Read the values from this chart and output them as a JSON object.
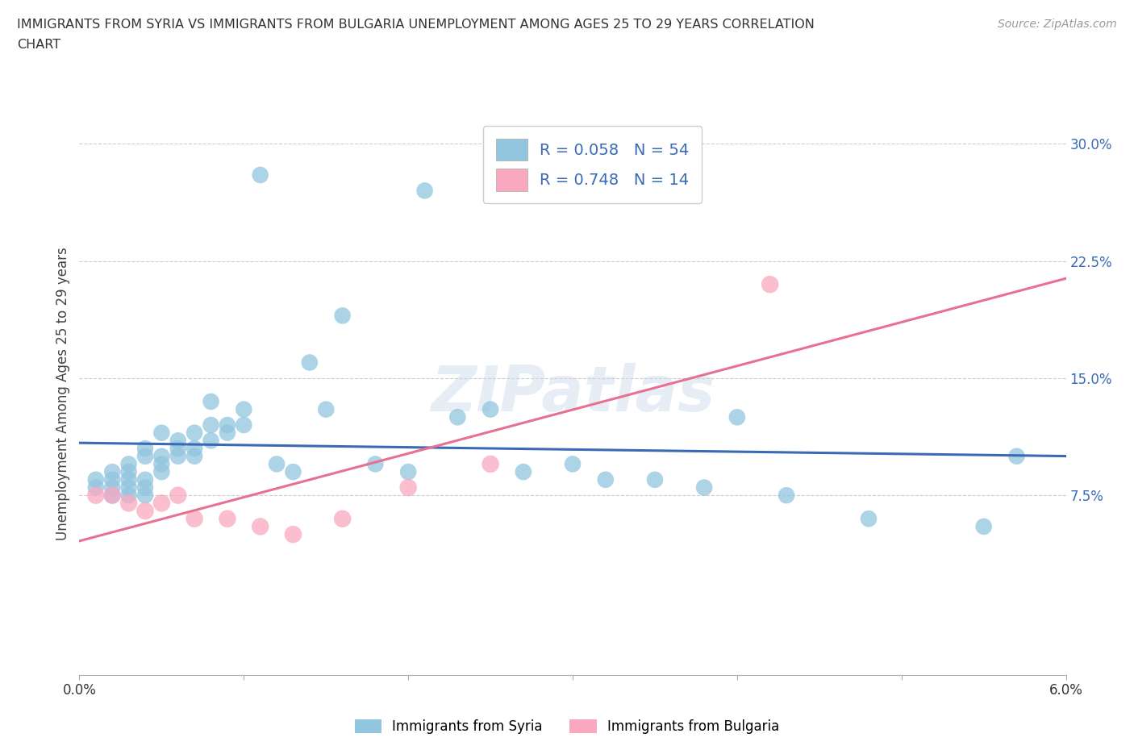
{
  "title_line1": "IMMIGRANTS FROM SYRIA VS IMMIGRANTS FROM BULGARIA UNEMPLOYMENT AMONG AGES 25 TO 29 YEARS CORRELATION",
  "title_line2": "CHART",
  "source_text": "Source: ZipAtlas.com",
  "ylabel": "Unemployment Among Ages 25 to 29 years",
  "syria_R": 0.058,
  "syria_N": 54,
  "bulgaria_R": 0.748,
  "bulgaria_N": 14,
  "syria_color": "#92C5DE",
  "bulgaria_color": "#F9A8C0",
  "syria_line_color": "#3A6AB5",
  "bulgaria_line_color": "#E87090",
  "xlim": [
    0.0,
    0.06
  ],
  "ylim": [
    -0.04,
    0.32
  ],
  "right_yticks": [
    0.075,
    0.15,
    0.225,
    0.3
  ],
  "right_yticklabels": [
    "7.5%",
    "15.0%",
    "22.5%",
    "30.0%"
  ],
  "xticks": [
    0.0,
    0.01,
    0.02,
    0.03,
    0.04,
    0.05,
    0.06
  ],
  "legend_label_syria": "Immigrants from Syria",
  "legend_label_bulgaria": "Immigrants from Bulgaria",
  "syria_x": [
    0.001,
    0.001,
    0.002,
    0.002,
    0.002,
    0.002,
    0.003,
    0.003,
    0.003,
    0.003,
    0.003,
    0.004,
    0.004,
    0.004,
    0.004,
    0.004,
    0.005,
    0.005,
    0.005,
    0.005,
    0.006,
    0.006,
    0.006,
    0.007,
    0.007,
    0.007,
    0.008,
    0.008,
    0.008,
    0.009,
    0.009,
    0.01,
    0.01,
    0.011,
    0.012,
    0.013,
    0.014,
    0.015,
    0.016,
    0.018,
    0.02,
    0.021,
    0.023,
    0.025,
    0.027,
    0.03,
    0.032,
    0.035,
    0.038,
    0.04,
    0.043,
    0.048,
    0.055,
    0.057
  ],
  "syria_y": [
    0.08,
    0.085,
    0.075,
    0.08,
    0.085,
    0.09,
    0.075,
    0.08,
    0.085,
    0.09,
    0.095,
    0.075,
    0.08,
    0.085,
    0.1,
    0.105,
    0.09,
    0.095,
    0.1,
    0.115,
    0.1,
    0.105,
    0.11,
    0.1,
    0.105,
    0.115,
    0.11,
    0.12,
    0.135,
    0.115,
    0.12,
    0.12,
    0.13,
    0.28,
    0.095,
    0.09,
    0.16,
    0.13,
    0.19,
    0.095,
    0.09,
    0.27,
    0.125,
    0.13,
    0.09,
    0.095,
    0.085,
    0.085,
    0.08,
    0.125,
    0.075,
    0.06,
    0.055,
    0.1
  ],
  "bulgaria_x": [
    0.001,
    0.002,
    0.003,
    0.004,
    0.005,
    0.006,
    0.007,
    0.009,
    0.011,
    0.013,
    0.016,
    0.02,
    0.025,
    0.042
  ],
  "bulgaria_y": [
    0.075,
    0.075,
    0.07,
    0.065,
    0.07,
    0.075,
    0.06,
    0.06,
    0.055,
    0.05,
    0.06,
    0.08,
    0.095,
    0.21
  ],
  "background_color": "#ffffff",
  "grid_color": "#c8c8c8"
}
